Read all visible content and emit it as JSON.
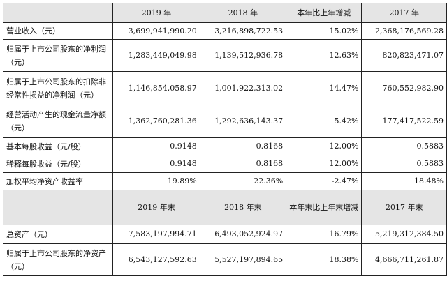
{
  "table1": {
    "headers": [
      "",
      "2019 年",
      "2018 年",
      "本年比上年增减",
      "2017 年"
    ],
    "rows": [
      {
        "label": "营业收入（元）",
        "v2019": "3,699,941,990.20",
        "v2018": "3,216,898,722.53",
        "change": "15.02%",
        "v2017": "2,368,176,569.28"
      },
      {
        "label": "归属于上市公司股东的净利润（元）",
        "v2019": "1,283,449,049.98",
        "v2018": "1,139,512,936.78",
        "change": "12.63%",
        "v2017": "820,823,471.07"
      },
      {
        "label": "归属于上市公司股东的扣除非经常性损益的净利润（元）",
        "v2019": "1,146,854,058.97",
        "v2018": "1,001,922,313.02",
        "change": "14.47%",
        "v2017": "760,552,982.90"
      },
      {
        "label": "经营活动产生的现金流量净额（元）",
        "v2019": "1,362,760,281.36",
        "v2018": "1,292,636,143.37",
        "change": "5.42%",
        "v2017": "177,417,522.59"
      },
      {
        "label": "基本每股收益（元/股）",
        "v2019": "0.9148",
        "v2018": "0.8168",
        "change": "12.00%",
        "v2017": "0.5883"
      },
      {
        "label": "稀释每股收益（元/股）",
        "v2019": "0.9148",
        "v2018": "0.8168",
        "change": "12.00%",
        "v2017": "0.5883"
      },
      {
        "label": "加权平均净资产收益率",
        "v2019": "19.89%",
        "v2018": "22.36%",
        "change": "-2.47%",
        "v2017": "18.48%"
      }
    ]
  },
  "table2": {
    "headers": [
      "",
      "2019 年末",
      "2018 年末",
      "本年末比上年末增减",
      "2017 年末"
    ],
    "rows": [
      {
        "label": "总资产（元）",
        "v2019": "7,583,197,994.71",
        "v2018": "6,493,052,924.97",
        "change": "16.79%",
        "v2017": "5,219,312,384.50"
      },
      {
        "label": "归属于上市公司股东的净资产（元）",
        "v2019": "6,543,127,592.63",
        "v2018": "5,527,197,894.65",
        "change": "18.38%",
        "v2017": "4,666,711,261.87"
      }
    ]
  }
}
